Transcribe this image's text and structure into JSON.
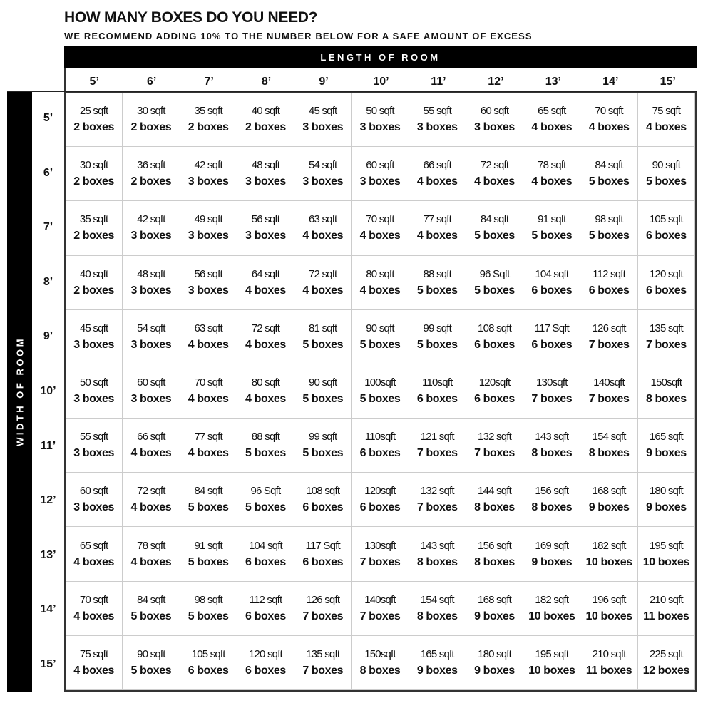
{
  "title": "HOW MANY BOXES DO YOU NEED?",
  "subtitle": "WE RECOMMEND ADDING 10% TO THE NUMBER BELOW FOR A SAFE AMOUNT OF EXCESS",
  "length_label": "LENGTH OF ROOM",
  "width_label": "WIDTH OF ROOM",
  "columns": [
    "5’",
    "6’",
    "7’",
    "8’",
    "9’",
    "10’",
    "11’",
    "12’",
    "13’",
    "14’",
    "15’"
  ],
  "rows": [
    {
      "label": "5’",
      "sqft": [
        "25 sqft",
        "30 sqft",
        "35 sqft",
        "40 sqft",
        "45 sqft",
        "50 sqft",
        "55 sqft",
        "60 sqft",
        "65 sqft",
        "70 sqft",
        "75 sqft"
      ],
      "boxes": [
        "2 boxes",
        "2 boxes",
        "2 boxes",
        "2 boxes",
        "3 boxes",
        "3 boxes",
        "3 boxes",
        "3 boxes",
        "4 boxes",
        "4 boxes",
        "4 boxes"
      ]
    },
    {
      "label": "6’",
      "sqft": [
        "30 sqft",
        "36 sqft",
        "42 sqft",
        "48 sqft",
        "54 sqft",
        "60 sqft",
        "66 sqft",
        "72 sqft",
        "78 sqft",
        "84 sqft",
        "90 sqft"
      ],
      "boxes": [
        "2 boxes",
        "2 boxes",
        "3 boxes",
        "3 boxes",
        "3 boxes",
        "3 boxes",
        "4 boxes",
        "4 boxes",
        "4 boxes",
        "5 boxes",
        "5 boxes"
      ]
    },
    {
      "label": "7’",
      "sqft": [
        "35 sqft",
        "42 sqft",
        "49 sqft",
        "56 sqft",
        "63 sqft",
        "70 sqft",
        "77 sqft",
        "84 sqft",
        "91 sqft",
        "98 sqft",
        "105 sqft"
      ],
      "boxes": [
        "2 boxes",
        "3 boxes",
        "3 boxes",
        "3 boxes",
        "4 boxes",
        "4 boxes",
        "4 boxes",
        "5 boxes",
        "5 boxes",
        "5 boxes",
        "6 boxes"
      ]
    },
    {
      "label": "8’",
      "sqft": [
        "40 sqft",
        "48 sqft",
        "56 sqft",
        "64 sqft",
        "72 sqft",
        "80 sqft",
        "88 sqft",
        "96 Sqft",
        "104 sqft",
        "112 sqft",
        "120 sqft"
      ],
      "boxes": [
        "2 boxes",
        "3 boxes",
        "3 boxes",
        "4 boxes",
        "4 boxes",
        "4 boxes",
        "5 boxes",
        "5 boxes",
        "6 boxes",
        "6 boxes",
        "6 boxes"
      ]
    },
    {
      "label": "9’",
      "sqft": [
        "45 sqft",
        "54 sqft",
        "63 sqft",
        "72 sqft",
        "81 sqft",
        "90 sqft",
        "99 sqft",
        "108 sqft",
        "117 Sqft",
        "126 sqft",
        "135 sqft"
      ],
      "boxes": [
        "3 boxes",
        "3 boxes",
        "4 boxes",
        "4 boxes",
        "5 boxes",
        "5 boxes",
        "5 boxes",
        "6 boxes",
        "6 boxes",
        "7 boxes",
        "7 boxes"
      ]
    },
    {
      "label": "10’",
      "sqft": [
        "50 sqft",
        "60 sqft",
        "70 sqft",
        "80 sqft",
        "90 sqft",
        "100sqft",
        "110sqft",
        "120sqft",
        "130sqft",
        "140sqft",
        "150sqft"
      ],
      "boxes": [
        "3 boxes",
        "3 boxes",
        "4 boxes",
        "4 boxes",
        "5 boxes",
        "5 boxes",
        "6 boxes",
        "6 boxes",
        "7 boxes",
        "7 boxes",
        "8 boxes"
      ]
    },
    {
      "label": "11’",
      "sqft": [
        "55 sqft",
        "66 sqft",
        "77 sqft",
        "88 sqft",
        "99 sqft",
        "110sqft",
        "121 sqft",
        "132 sqft",
        "143 sqft",
        "154 sqft",
        "165 sqft"
      ],
      "boxes": [
        "3 boxes",
        "4 boxes",
        "4 boxes",
        "5 boxes",
        "5 boxes",
        "6 boxes",
        "7 boxes",
        "7 boxes",
        "8 boxes",
        "8 boxes",
        "9 boxes"
      ]
    },
    {
      "label": "12’",
      "sqft": [
        "60 sqft",
        "72 sqft",
        "84 sqft",
        "96 Sqft",
        "108 sqft",
        "120sqft",
        "132 sqft",
        "144 sqft",
        "156 sqft",
        "168 sqft",
        "180 sqft"
      ],
      "boxes": [
        "3 boxes",
        "4 boxes",
        "5 boxes",
        "5 boxes",
        "6 boxes",
        "6 boxes",
        "7 boxes",
        "8 boxes",
        "8 boxes",
        "9 boxes",
        "9 boxes"
      ]
    },
    {
      "label": "13’",
      "sqft": [
        "65 sqft",
        "78 sqft",
        "91 sqft",
        "104 sqft",
        "117 Sqft",
        "130sqft",
        "143 sqft",
        "156 sqft",
        "169 sqft",
        "182 sqft",
        "195 sqft"
      ],
      "boxes": [
        "4 boxes",
        "4 boxes",
        "5 boxes",
        "6 boxes",
        "6 boxes",
        "7 boxes",
        "8 boxes",
        "8 boxes",
        "9 boxes",
        "10 boxes",
        "10 boxes"
      ]
    },
    {
      "label": "14’",
      "sqft": [
        "70 sqft",
        "84 sqft",
        "98 sqft",
        "112 sqft",
        "126 sqft",
        "140sqft",
        "154 sqft",
        "168 sqft",
        "182 sqft",
        "196 sqft",
        "210 sqft"
      ],
      "boxes": [
        "4 boxes",
        "5 boxes",
        "5 boxes",
        "6 boxes",
        "7 boxes",
        "7 boxes",
        "8 boxes",
        "9 boxes",
        "10 boxes",
        "10 boxes",
        "11 boxes"
      ]
    },
    {
      "label": "15’",
      "sqft": [
        "75 sqft",
        "90 sqft",
        "105 sqft",
        "120 sqft",
        "135 sqft",
        "150sqft",
        "165 sqft",
        "180 sqft",
        "195 sqft",
        "210 sqft",
        "225 sqft"
      ],
      "boxes": [
        "4 boxes",
        "5 boxes",
        "6 boxes",
        "6 boxes",
        "7 boxes",
        "8 boxes",
        "9 boxes",
        "9 boxes",
        "10 boxes",
        "11 boxes",
        "12 boxes"
      ]
    }
  ]
}
